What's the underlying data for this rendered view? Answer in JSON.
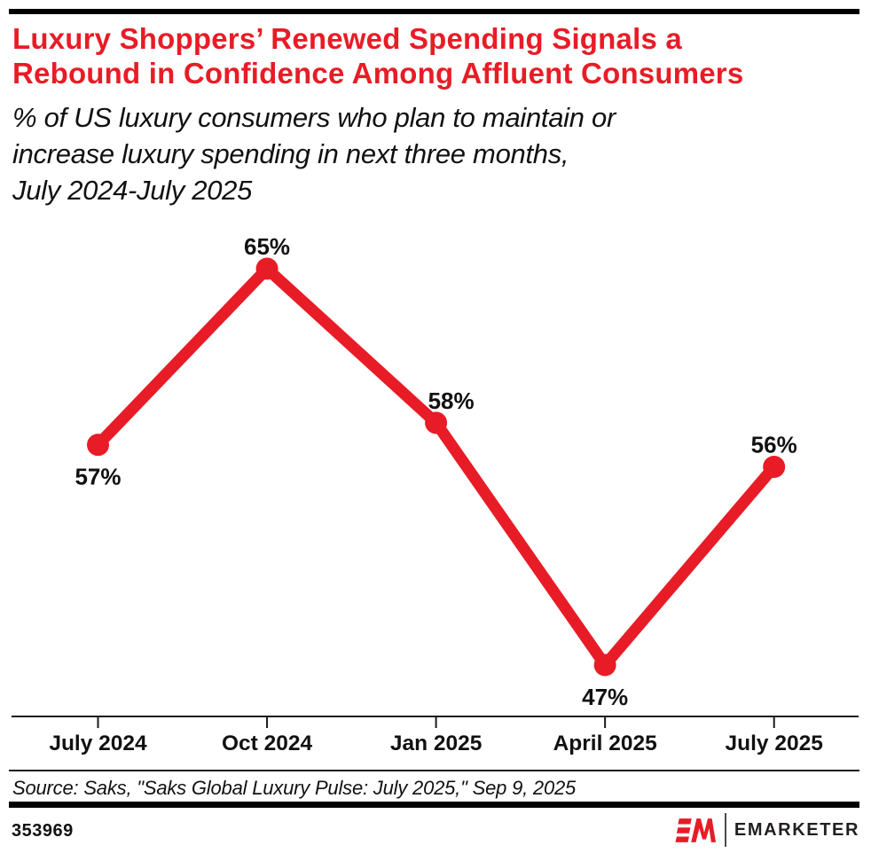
{
  "colors": {
    "accent_red": "#E81C26",
    "text_black": "#111111",
    "bar_black": "#000000"
  },
  "chart_data": {
    "type": "line",
    "title": "Luxury Shoppers’ Renewed Spending Signals a\nRebound in Confidence Among Affluent Consumers",
    "subtitle": "% of US luxury consumers who plan to maintain or\nincrease luxury spending in next three months,\nJuly 2024-July 2025",
    "categories": [
      "July 2024",
      "Oct 2024",
      "Jan 2025",
      "April 2025",
      "July 2025"
    ],
    "values": [
      57,
      65,
      58,
      47,
      56
    ],
    "unit": "%",
    "xlabel": "",
    "ylabel": "",
    "ylim_implied": [
      44.5,
      67
    ],
    "grid": false,
    "legend": false,
    "line_color": "#E81C26",
    "axis_color": "#1a1a1a",
    "label_placement": [
      "below",
      "above",
      "above",
      "below",
      "above"
    ],
    "label_dx": [
      0,
      0,
      17,
      0,
      0
    ]
  },
  "source": "Source: Saks, \"Saks Global Luxury Pulse: July 2025,\" Sep 9, 2025",
  "footer": {
    "chart_id": "353969",
    "brand_name": "EMARKETER",
    "logo_monogram": "EM"
  }
}
